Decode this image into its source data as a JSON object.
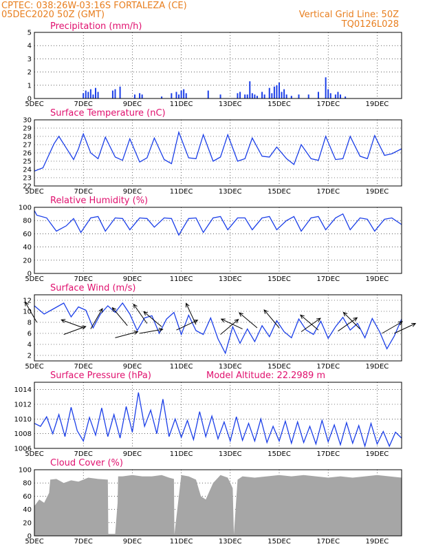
{
  "header": {
    "line1_left": "CPTEC:   038:26W-03:16S   FORTALEZA (CE)",
    "line2_left": "05DEC2020 50Z (GMT)",
    "line2_right": "Vertical Grid Line: 50Z",
    "line3_right": "TQ0126L028"
  },
  "colors": {
    "header": "#e87e1e",
    "title": "#e0106e",
    "series": "#1a3ee8",
    "cloud": "#a6a6a6"
  },
  "x_axis": {
    "ticks": [
      "5DEC",
      "7DEC",
      "9DEC",
      "11DEC",
      "13DEC",
      "15DEC",
      "17DEC",
      "19DEC"
    ],
    "tick_days": [
      0,
      2,
      4,
      6,
      8,
      10,
      12,
      14
    ],
    "range_days": [
      0,
      15
    ]
  },
  "chart_data": [
    {
      "id": "precip",
      "type": "bar",
      "title": "Precipitation (mm/h)",
      "ylim": [
        0,
        5
      ],
      "yticks": [
        "0",
        "1",
        "2",
        "3",
        "4",
        "5"
      ],
      "x_days": [
        2.0,
        2.1,
        2.2,
        2.3,
        2.4,
        2.5,
        2.6,
        3.2,
        3.3,
        3.5,
        4.1,
        4.3,
        4.4,
        5.2,
        5.6,
        5.8,
        5.9,
        6.0,
        6.1,
        6.2,
        7.1,
        7.6,
        8.3,
        8.4,
        8.6,
        8.7,
        8.8,
        8.9,
        9.0,
        9.1,
        9.3,
        9.4,
        9.6,
        9.7,
        9.8,
        9.9,
        10.0,
        10.1,
        10.2,
        10.3,
        10.5,
        10.8,
        11.2,
        11.6,
        11.9,
        12.0,
        12.1,
        12.3,
        12.4,
        12.5,
        12.7
      ],
      "values": [
        0.4,
        0.6,
        0.5,
        0.7,
        0.3,
        0.8,
        0.5,
        0.6,
        0.7,
        0.9,
        0.3,
        0.4,
        0.3,
        0.15,
        0.4,
        0.5,
        0.3,
        0.6,
        0.7,
        0.4,
        0.6,
        0.3,
        0.4,
        0.5,
        0.3,
        0.3,
        1.3,
        0.4,
        0.3,
        0.2,
        0.5,
        0.3,
        0.8,
        0.4,
        0.9,
        1.0,
        1.2,
        0.5,
        0.7,
        0.3,
        0.2,
        0.3,
        0.3,
        0.5,
        1.6,
        0.7,
        0.4,
        0.3,
        0.5,
        0.3,
        0.15
      ]
    },
    {
      "id": "temp",
      "type": "line",
      "title": "Surface Temperature (nC)",
      "ylim": [
        22,
        30
      ],
      "yticks": [
        "22",
        "23",
        "24",
        "25",
        "26",
        "27",
        "28",
        "29",
        "30"
      ],
      "x_days": [
        0.0,
        0.35,
        0.8,
        1.0,
        1.3,
        1.6,
        1.8,
        2.0,
        2.3,
        2.6,
        2.9,
        3.3,
        3.6,
        3.9,
        4.3,
        4.6,
        4.9,
        5.3,
        5.6,
        5.9,
        6.3,
        6.6,
        6.9,
        7.3,
        7.6,
        7.9,
        8.3,
        8.6,
        8.9,
        9.3,
        9.6,
        9.9,
        10.3,
        10.6,
        10.9,
        11.3,
        11.6,
        11.9,
        12.3,
        12.6,
        12.9,
        13.3,
        13.6,
        13.9,
        14.3,
        14.6,
        15.0
      ],
      "values": [
        23.8,
        24.2,
        27.1,
        28.0,
        26.6,
        25.2,
        26.5,
        28.3,
        26.0,
        25.3,
        27.9,
        25.5,
        25.1,
        27.7,
        24.9,
        25.4,
        27.8,
        25.2,
        24.7,
        28.5,
        25.4,
        25.3,
        28.2,
        25.0,
        25.5,
        28.2,
        25.0,
        25.3,
        27.8,
        25.6,
        25.5,
        26.7,
        25.3,
        24.6,
        27.0,
        25.3,
        25.1,
        28.0,
        25.2,
        25.3,
        28.0,
        25.6,
        25.3,
        28.1,
        25.7,
        25.9,
        26.5
      ]
    },
    {
      "id": "rh",
      "type": "line",
      "title": "Relative Humidity (%)",
      "ylim": [
        0,
        100
      ],
      "yticks": [
        "0",
        "20",
        "40",
        "60",
        "80",
        "100"
      ],
      "x_days": [
        0.0,
        0.1,
        0.5,
        0.9,
        1.3,
        1.6,
        1.9,
        2.3,
        2.6,
        2.9,
        3.3,
        3.6,
        3.9,
        4.3,
        4.6,
        4.9,
        5.3,
        5.6,
        5.9,
        6.3,
        6.6,
        6.9,
        7.3,
        7.6,
        7.9,
        8.3,
        8.6,
        8.9,
        9.3,
        9.6,
        9.9,
        10.3,
        10.6,
        10.9,
        11.3,
        11.6,
        11.9,
        12.3,
        12.6,
        12.9,
        13.3,
        13.6,
        13.9,
        14.3,
        14.6,
        15.0
      ],
      "values": [
        95,
        88,
        84,
        64,
        72,
        83,
        62,
        84,
        86,
        64,
        84,
        83,
        66,
        84,
        83,
        70,
        84,
        83,
        58,
        83,
        84,
        62,
        84,
        86,
        66,
        84,
        84,
        66,
        84,
        86,
        66,
        80,
        86,
        64,
        84,
        86,
        66,
        84,
        90,
        66,
        84,
        82,
        64,
        82,
        84,
        74
      ]
    },
    {
      "id": "wind",
      "type": "line",
      "title": "Surface Wind (m/s)",
      "ylim": [
        1,
        13
      ],
      "yticks": [
        "2",
        "4",
        "6",
        "8",
        "10",
        "12"
      ],
      "x_days": [
        0.0,
        0.4,
        0.8,
        1.2,
        1.5,
        1.8,
        2.1,
        2.4,
        2.7,
        3.0,
        3.3,
        3.6,
        3.9,
        4.2,
        4.5,
        4.8,
        5.1,
        5.4,
        5.7,
        6.0,
        6.3,
        6.6,
        6.9,
        7.2,
        7.5,
        7.8,
        8.1,
        8.4,
        8.7,
        9.0,
        9.3,
        9.6,
        9.9,
        10.2,
        10.5,
        10.8,
        11.1,
        11.4,
        11.7,
        12.0,
        12.3,
        12.6,
        12.9,
        13.2,
        13.5,
        13.8,
        14.1,
        14.4,
        14.7,
        15.0
      ],
      "values": [
        11,
        9.5,
        10.5,
        11.5,
        9.0,
        10.8,
        10.2,
        7.0,
        9.5,
        11.0,
        9.8,
        11.5,
        9.5,
        6.5,
        8.8,
        9.2,
        6.0,
        8.6,
        9.8,
        5.8,
        9.3,
        6.5,
        5.8,
        8.8,
        5.0,
        2.4,
        7.2,
        4.2,
        6.8,
        4.5,
        7.4,
        5.4,
        8.3,
        6.3,
        5.2,
        8.6,
        6.6,
        5.8,
        8.2,
        5.1,
        7.2,
        8.9,
        6.6,
        7.8,
        5.2,
        8.7,
        6.3,
        3.2,
        5.5,
        8.6
      ],
      "arrows": [
        {
          "x": 0.1,
          "y": 8.0,
          "dir_deg": 120
        },
        {
          "x": 1.2,
          "y": 5.8,
          "dir_deg": 20
        },
        {
          "x": 2.0,
          "y": 7.0,
          "dir_deg": 160
        },
        {
          "x": 2.3,
          "y": 6.8,
          "dir_deg": 60
        },
        {
          "x": 3.3,
          "y": 5.2,
          "dir_deg": 15
        },
        {
          "x": 3.8,
          "y": 7.4,
          "dir_deg": 130
        },
        {
          "x": 4.3,
          "y": 6.0,
          "dir_deg": 10
        },
        {
          "x": 4.6,
          "y": 7.8,
          "dir_deg": 125
        },
        {
          "x": 5.2,
          "y": 7.2,
          "dir_deg": 140
        },
        {
          "x": 5.8,
          "y": 6.6,
          "dir_deg": 25
        },
        {
          "x": 6.6,
          "y": 7.6,
          "dir_deg": 115
        },
        {
          "x": 7.6,
          "y": 5.8,
          "dir_deg": 40
        },
        {
          "x": 8.5,
          "y": 6.8,
          "dir_deg": 155
        },
        {
          "x": 9.1,
          "y": 7.0,
          "dir_deg": 140
        },
        {
          "x": 10.0,
          "y": 7.0,
          "dir_deg": 130
        },
        {
          "x": 10.9,
          "y": 6.3,
          "dir_deg": 35
        },
        {
          "x": 11.6,
          "y": 6.6,
          "dir_deg": 140
        },
        {
          "x": 12.4,
          "y": 6.4,
          "dir_deg": 35
        },
        {
          "x": 13.3,
          "y": 6.8,
          "dir_deg": 135
        },
        {
          "x": 14.2,
          "y": 6.0,
          "dir_deg": 30
        },
        {
          "x": 14.7,
          "y": 6.0,
          "dir_deg": 25
        }
      ]
    },
    {
      "id": "press",
      "type": "line",
      "title": "Surface Pressure (hPa)",
      "annotation": "Model Altitude: 22.2989 m",
      "ylim": [
        1006,
        1015
      ],
      "yticks": [
        "1006",
        "1008",
        "1010",
        "1012",
        "1014"
      ],
      "x_days": [
        0.0,
        0.25,
        0.5,
        0.75,
        1.0,
        1.25,
        1.5,
        1.75,
        2.0,
        2.25,
        2.5,
        2.75,
        3.0,
        3.25,
        3.5,
        3.75,
        4.0,
        4.25,
        4.5,
        4.75,
        5.0,
        5.25,
        5.5,
        5.75,
        6.0,
        6.25,
        6.5,
        6.75,
        7.0,
        7.25,
        7.5,
        7.75,
        8.0,
        8.25,
        8.5,
        8.75,
        9.0,
        9.25,
        9.5,
        9.75,
        10.0,
        10.25,
        10.5,
        10.75,
        11.0,
        11.25,
        11.5,
        11.75,
        12.0,
        12.25,
        12.5,
        12.75,
        13.0,
        13.25,
        13.5,
        13.75,
        14.0,
        14.25,
        14.5,
        14.75,
        15.0
      ],
      "values": [
        1009.4,
        1009.0,
        1010.3,
        1008.0,
        1010.6,
        1007.6,
        1011.6,
        1008.4,
        1007.0,
        1010.2,
        1007.8,
        1011.5,
        1007.6,
        1010.6,
        1007.4,
        1011.7,
        1008.2,
        1013.6,
        1009.0,
        1011.2,
        1008.0,
        1012.7,
        1007.6,
        1010.0,
        1007.5,
        1009.8,
        1007.2,
        1011.0,
        1007.6,
        1010.4,
        1007.3,
        1009.6,
        1007.0,
        1010.3,
        1007.1,
        1009.4,
        1007.0,
        1010.0,
        1006.8,
        1009.0,
        1007.0,
        1009.7,
        1006.7,
        1009.6,
        1006.8,
        1009.0,
        1006.6,
        1009.8,
        1006.9,
        1009.2,
        1006.5,
        1009.5,
        1006.7,
        1009.1,
        1006.3,
        1009.4,
        1006.6,
        1008.3,
        1006.3,
        1008.2,
        1007.4
      ]
    },
    {
      "id": "cloud",
      "type": "area",
      "title": "Cloud Cover (%)",
      "ylim": [
        0,
        100
      ],
      "yticks": [
        "0",
        "20",
        "40",
        "60",
        "80",
        "100"
      ],
      "x_days": [
        0.0,
        0.2,
        0.4,
        0.6,
        0.65,
        0.9,
        1.2,
        1.5,
        1.8,
        2.2,
        2.6,
        3.0,
        3.02,
        3.3,
        3.4,
        3.42,
        3.6,
        4.0,
        4.4,
        4.8,
        5.2,
        5.5,
        5.7,
        5.72,
        6.0,
        6.3,
        6.6,
        6.8,
        7.0,
        7.3,
        7.6,
        7.9,
        8.1,
        8.15,
        8.3,
        8.5,
        9.0,
        9.5,
        10.0,
        10.5,
        11.0,
        11.5,
        12.0,
        12.5,
        13.0,
        13.5,
        14.0,
        14.5,
        15.0
      ],
      "values": [
        45,
        55,
        50,
        65,
        85,
        86,
        80,
        84,
        82,
        88,
        86,
        85,
        3,
        3,
        50,
        90,
        90,
        92,
        90,
        90,
        92,
        88,
        86,
        2,
        92,
        90,
        85,
        60,
        55,
        80,
        92,
        88,
        72,
        2,
        85,
        90,
        88,
        90,
        92,
        90,
        92,
        90,
        88,
        90,
        88,
        90,
        92,
        90,
        88
      ]
    }
  ]
}
